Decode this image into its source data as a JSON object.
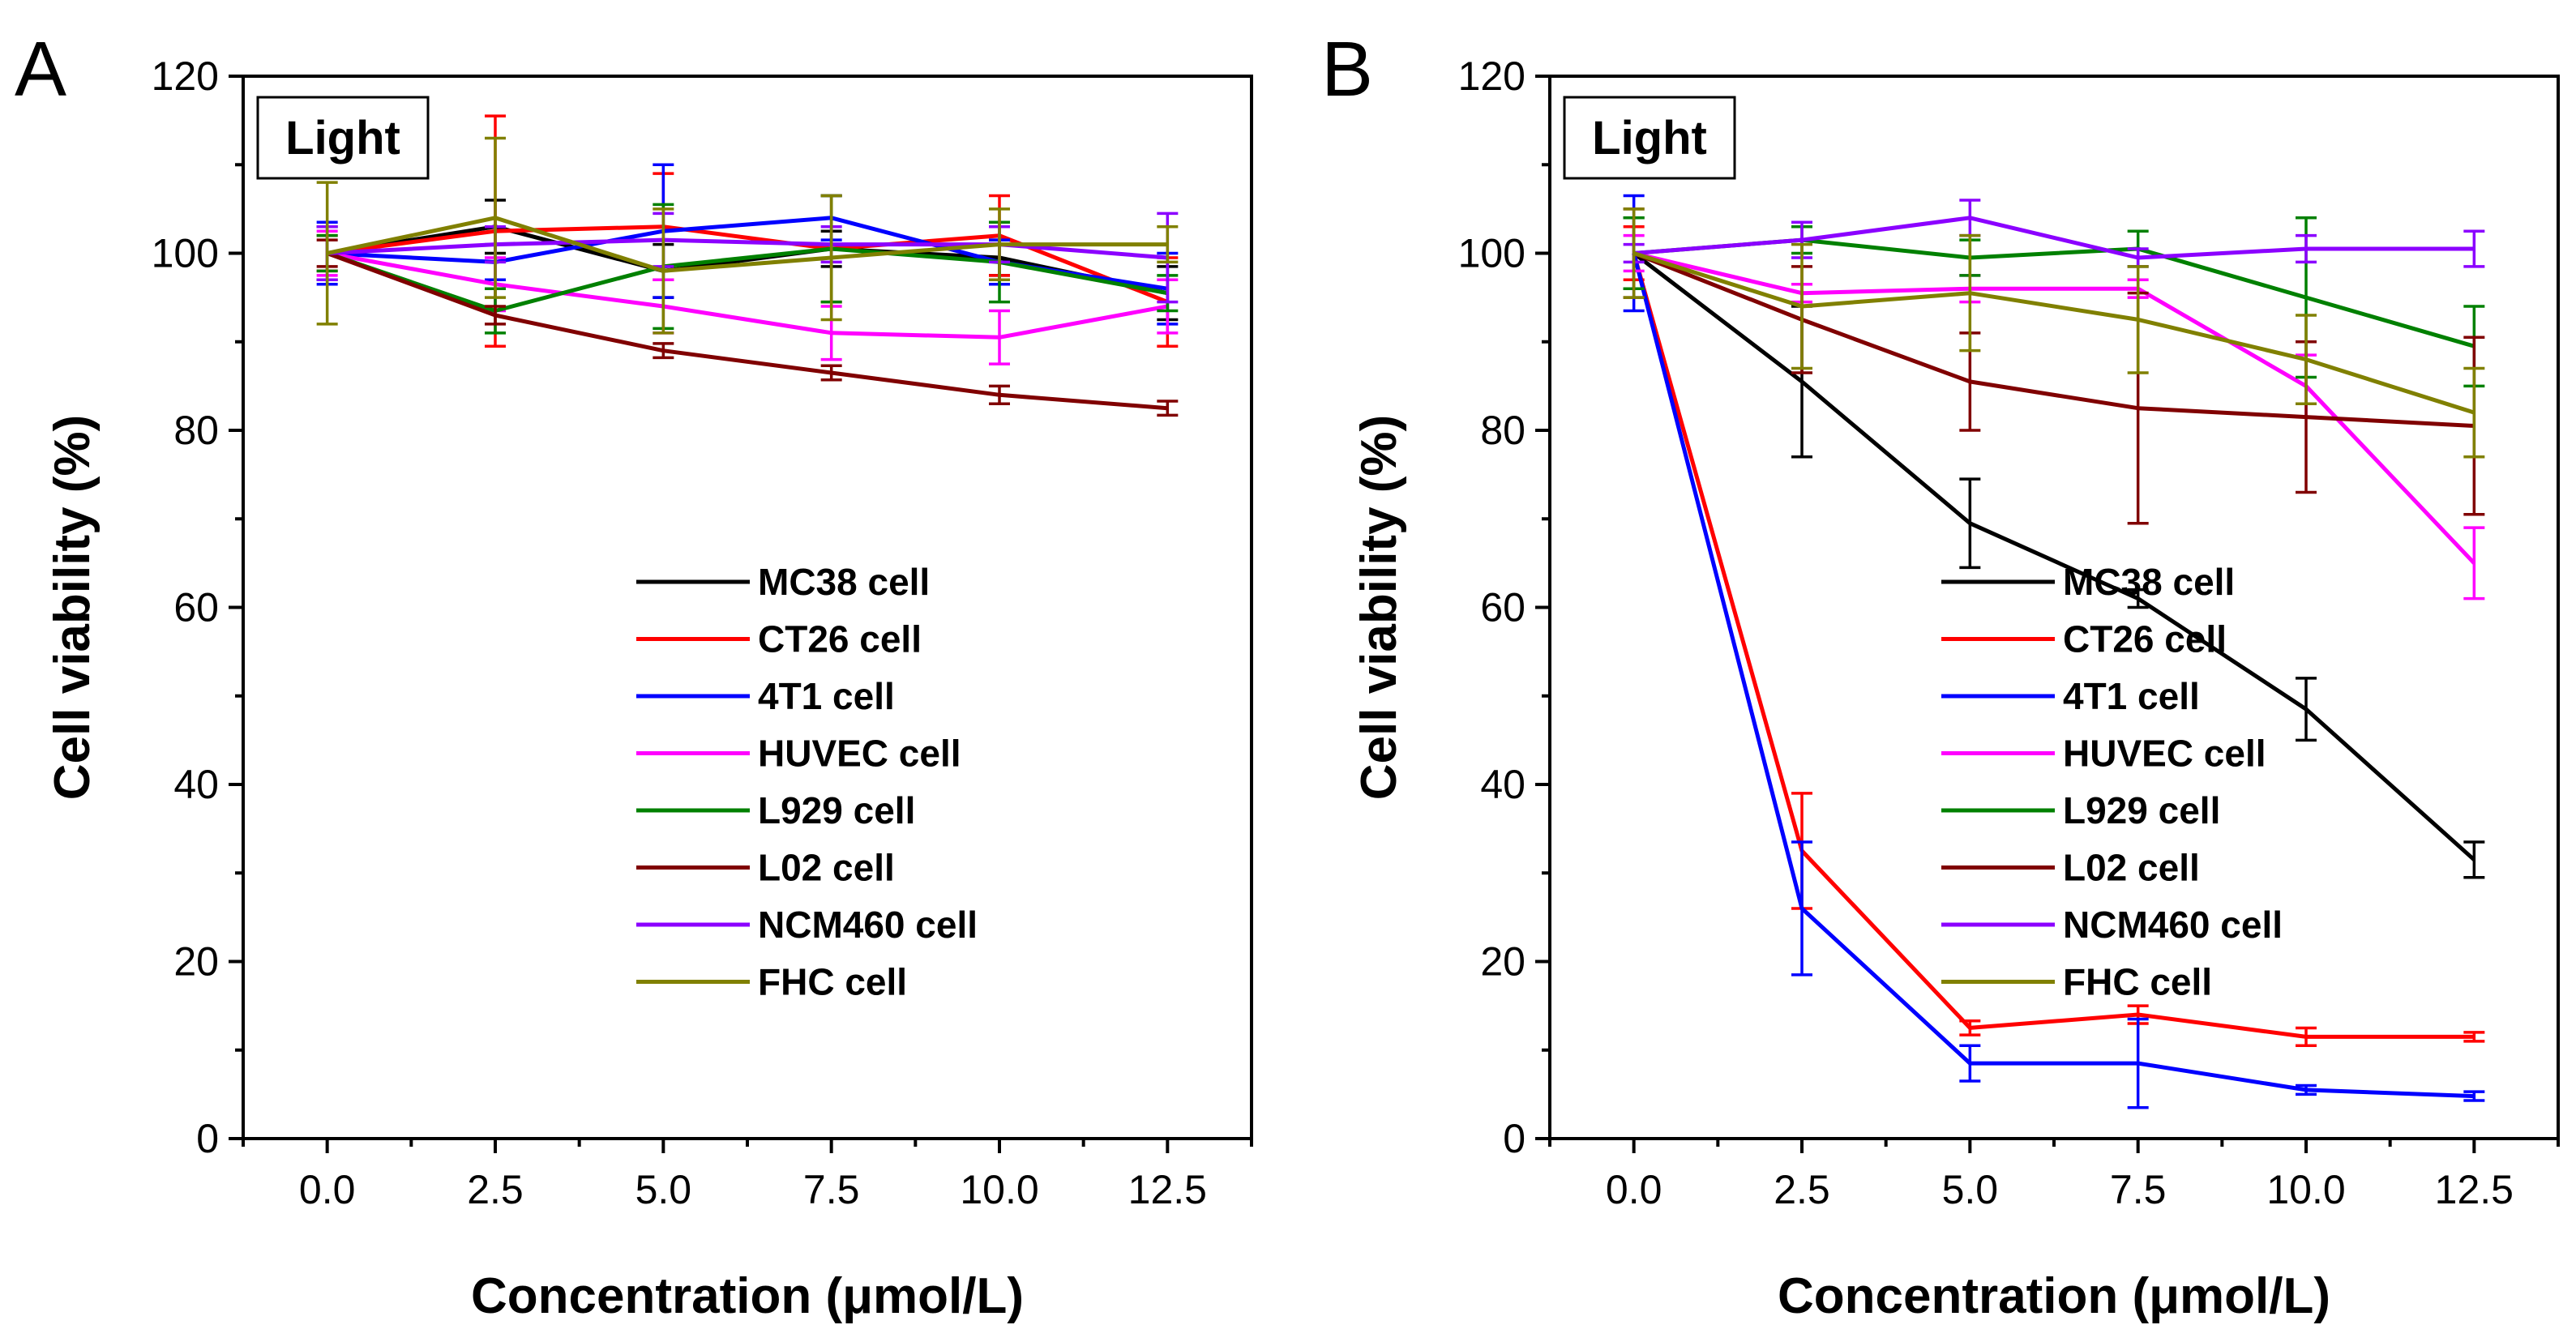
{
  "chart_data": [
    {
      "type": "line",
      "panel": "A",
      "badge": "Light",
      "title": "",
      "xlabel": "Concentration (μmol/L)",
      "ylabel": "Cell viability (%)",
      "xlim": [
        -1.25,
        13.75
      ],
      "ylim": [
        0,
        120
      ],
      "x": [
        0.0,
        2.5,
        5.0,
        7.5,
        10.0,
        12.5
      ],
      "x_tick_labels": [
        "0.0",
        "2.5",
        "5.0",
        "7.5",
        "10.0",
        "12.5"
      ],
      "y_ticks": [
        0,
        20,
        40,
        60,
        80,
        100,
        120
      ],
      "y_tick_labels": [
        "0",
        "20",
        "40",
        "60",
        "80",
        "100",
        "120"
      ],
      "legend_position": "center-right",
      "series": [
        {
          "name": "MC38 cell",
          "color": "#000000",
          "values": [
            100,
            103,
            98,
            100.5,
            99.5,
            95.5
          ],
          "errors": [
            3,
            3,
            3,
            2,
            2,
            3
          ]
        },
        {
          "name": "CT26 cell",
          "color": "#ff0000",
          "values": [
            100,
            102.5,
            103,
            100.5,
            102,
            94.5
          ],
          "errors": [
            2,
            13,
            6,
            6,
            4.5,
            5
          ]
        },
        {
          "name": "4T1 cell",
          "color": "#0000ff",
          "values": [
            100,
            99,
            102.5,
            104,
            99,
            96
          ],
          "errors": [
            3.5,
            2,
            7.5,
            2.5,
            2.5,
            4
          ]
        },
        {
          "name": "HUVEC cell",
          "color": "#ff00ff",
          "values": [
            100,
            96.5,
            94,
            91,
            90.5,
            94
          ],
          "errors": [
            2.5,
            3,
            3,
            3,
            3,
            3
          ]
        },
        {
          "name": "L929 cell",
          "color": "#008000",
          "values": [
            100,
            93.5,
            98.5,
            100.5,
            99,
            95.5
          ],
          "errors": [
            2,
            2.5,
            7,
            6,
            4.5,
            2
          ]
        },
        {
          "name": "L02 cell",
          "color": "#800000",
          "values": [
            100,
            93,
            89,
            86.5,
            84,
            82.5
          ],
          "errors": [
            1.5,
            1,
            0.8,
            0.8,
            1,
            0.8
          ]
        },
        {
          "name": "NCM460 cell",
          "color": "#8b00ff",
          "values": [
            100,
            101,
            101.5,
            101,
            101,
            99.5
          ],
          "errors": [
            3,
            2,
            3,
            2,
            2,
            5
          ]
        },
        {
          "name": "FHC cell",
          "color": "#808000",
          "values": [
            100,
            104,
            98,
            99.5,
            101,
            101
          ],
          "errors": [
            8,
            9,
            7,
            7,
            4,
            2
          ]
        }
      ]
    },
    {
      "type": "line",
      "panel": "B",
      "badge": "Light",
      "title": "",
      "xlabel": "Concentration (μmol/L)",
      "ylabel": "Cell viability (%)",
      "xlim": [
        -1.25,
        13.75
      ],
      "ylim": [
        0,
        120
      ],
      "x": [
        0.0,
        2.5,
        5.0,
        7.5,
        10.0,
        12.5
      ],
      "x_tick_labels": [
        "0.0",
        "2.5",
        "5.0",
        "7.5",
        "10.0",
        "12.5"
      ],
      "y_ticks": [
        0,
        20,
        40,
        60,
        80,
        100,
        120
      ],
      "y_tick_labels": [
        "0",
        "20",
        "40",
        "60",
        "80",
        "100",
        "120"
      ],
      "legend_position": "center-right",
      "series": [
        {
          "name": "MC38 cell",
          "color": "#000000",
          "values": [
            100,
            85.5,
            69.5,
            61,
            48.5,
            31.5
          ],
          "errors": [
            4,
            8.5,
            5,
            1,
            3.5,
            2
          ]
        },
        {
          "name": "CT26 cell",
          "color": "#ff0000",
          "values": [
            100,
            32.5,
            12.5,
            14,
            11.5,
            11.5
          ],
          "errors": [
            3,
            6.5,
            0.8,
            1,
            1,
            0.5
          ]
        },
        {
          "name": "4T1 cell",
          "color": "#0000ff",
          "values": [
            100,
            26,
            8.5,
            8.5,
            5.5,
            4.8
          ],
          "errors": [
            6.5,
            7.5,
            2,
            5,
            0.5,
            0.5
          ]
        },
        {
          "name": "HUVEC cell",
          "color": "#ff00ff",
          "values": [
            100,
            95.5,
            96,
            96,
            85,
            65
          ],
          "errors": [
            2,
            1,
            1.5,
            1,
            3.5,
            4
          ]
        },
        {
          "name": "L929 cell",
          "color": "#008000",
          "values": [
            100,
            101.5,
            99.5,
            100.5,
            95,
            89.5
          ],
          "errors": [
            4,
            1.5,
            2,
            2,
            9,
            4.5
          ]
        },
        {
          "name": "L02 cell",
          "color": "#800000",
          "values": [
            100,
            92.5,
            85.5,
            82.5,
            81.5,
            80.5
          ],
          "errors": [
            5,
            6,
            5.5,
            13,
            8.5,
            10
          ]
        },
        {
          "name": "NCM460 cell",
          "color": "#8b00ff",
          "values": [
            100,
            101.5,
            104,
            99.5,
            100.5,
            100.5
          ],
          "errors": [
            1,
            2,
            2,
            1,
            1.5,
            2
          ]
        },
        {
          "name": "FHC cell",
          "color": "#808000",
          "values": [
            100,
            94,
            95.5,
            92.5,
            88,
            82
          ],
          "errors": [
            5,
            7,
            6.5,
            6,
            5,
            5
          ]
        }
      ]
    }
  ]
}
